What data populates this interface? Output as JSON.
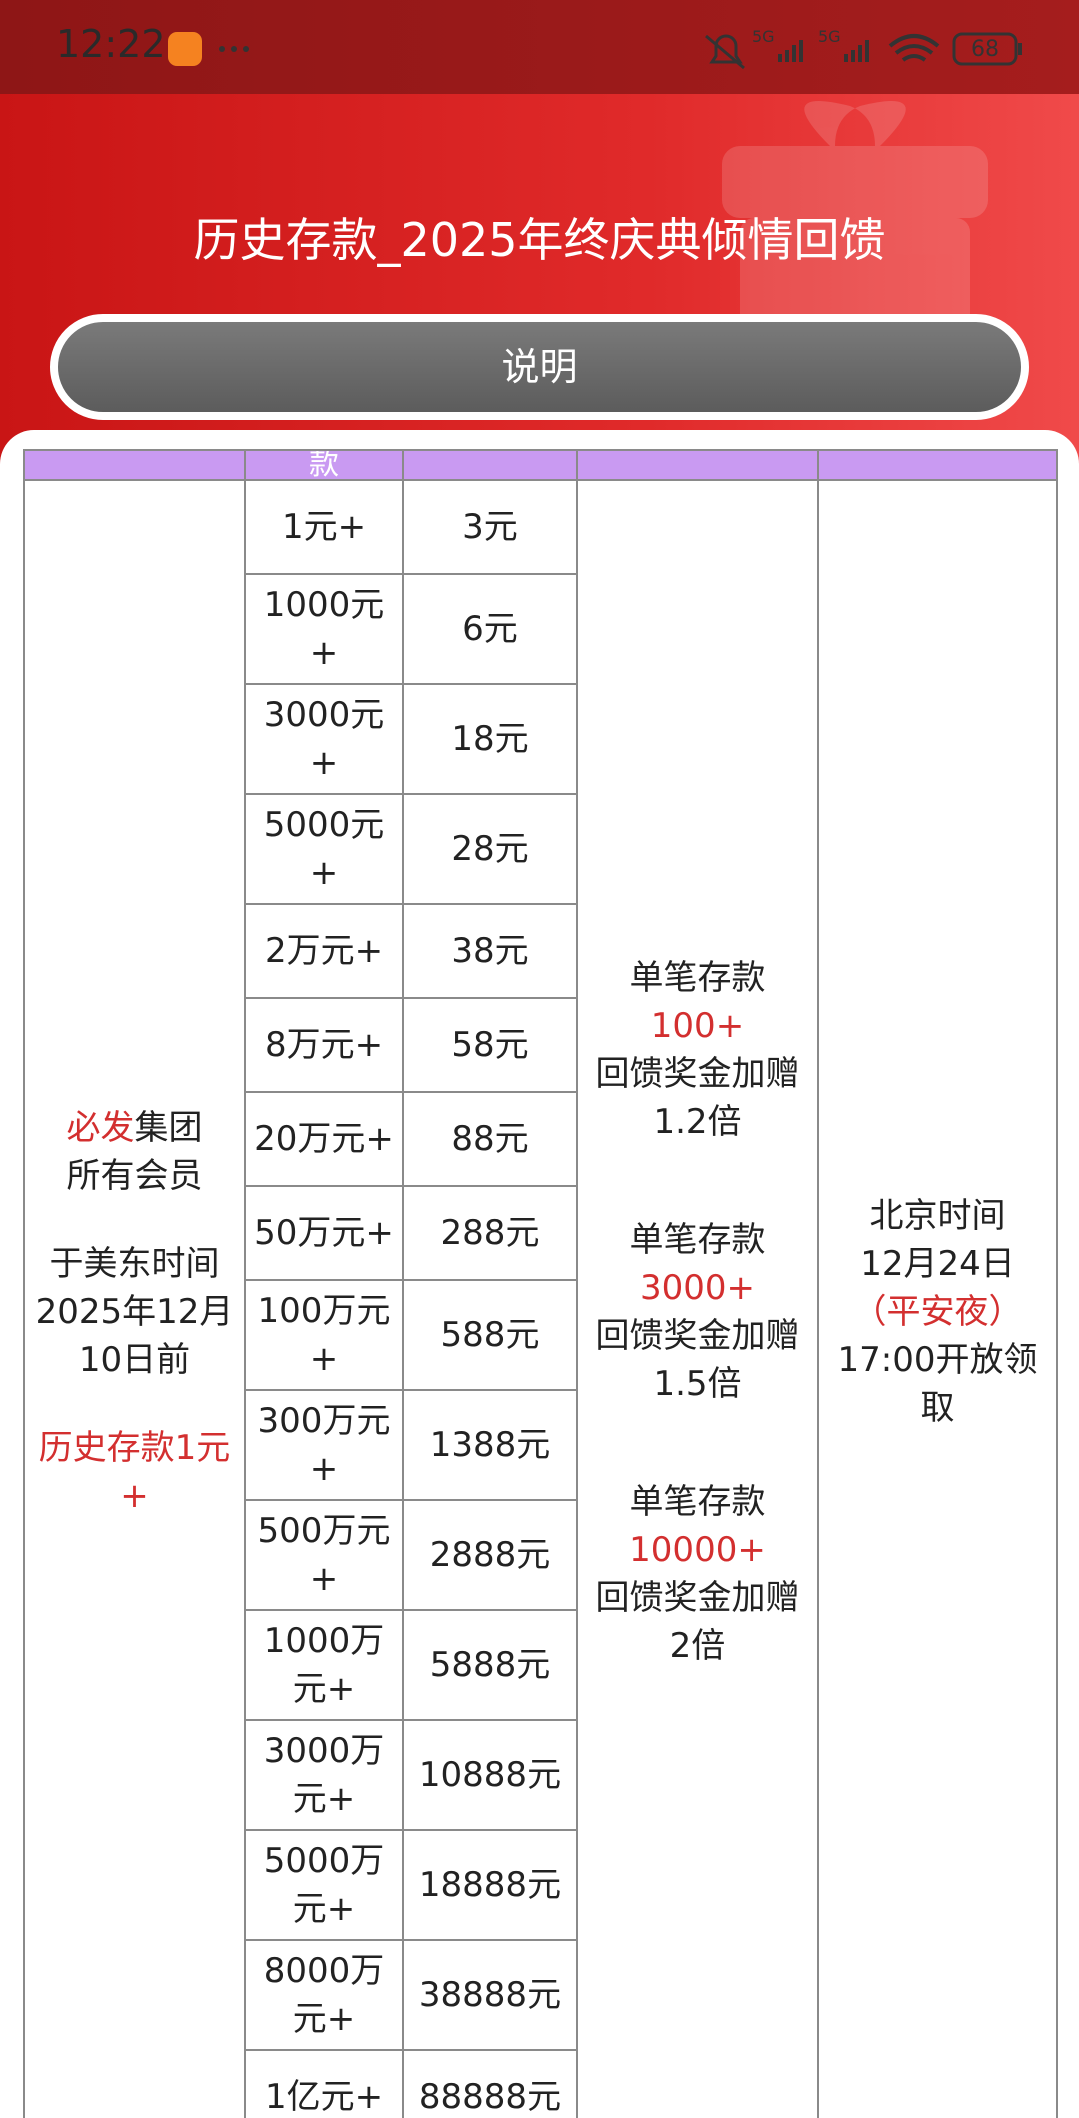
{
  "status": {
    "time": "12:22",
    "network": [
      "5G",
      "5G"
    ],
    "battery": "68"
  },
  "header": {
    "title": "历史存款_2025年终庆典倾情回馈",
    "button": "说明"
  },
  "table": {
    "header_fragment": "款",
    "eligibility": [
      [
        [
          {
            "text": "必发",
            "color": "#d32f2f"
          },
          {
            "text": "集团"
          }
        ],
        [
          {
            "text": "所有会员"
          }
        ]
      ],
      [
        [
          {
            "text": "于美东时间"
          }
        ],
        [
          {
            "text": "2025年12月"
          }
        ],
        [
          {
            "text": "10日前"
          }
        ]
      ],
      [
        [
          {
            "text": "历史存款1元+",
            "color": "#d32f2f"
          }
        ]
      ]
    ],
    "tiers": [
      {
        "deposit": "1元+",
        "reward": "3元"
      },
      {
        "deposit": "1000元+",
        "reward": "6元"
      },
      {
        "deposit": "3000元+",
        "reward": "18元"
      },
      {
        "deposit": "5000元+",
        "reward": "28元"
      },
      {
        "deposit": "2万元+",
        "reward": "38元"
      },
      {
        "deposit": "8万元+",
        "reward": "58元"
      },
      {
        "deposit": "20万元+",
        "reward": "88元"
      },
      {
        "deposit": "50万元+",
        "reward": "288元"
      },
      {
        "deposit": "100万元+",
        "reward": "588元"
      },
      {
        "deposit": "300万元+",
        "reward": "1388元"
      },
      {
        "deposit": "500万元+",
        "reward": "2888元"
      },
      {
        "deposit": "1000万元+",
        "reward": "5888元"
      },
      {
        "deposit": "3000万元+",
        "reward": "10888元"
      },
      {
        "deposit": "5000万元+",
        "reward": "18888元"
      },
      {
        "deposit": "8000万元+",
        "reward": "38888元"
      },
      {
        "deposit": "1亿元+",
        "reward": "88888元"
      }
    ],
    "bonus": [
      {
        "label": "单笔存款",
        "amount": "100+",
        "text": "回馈奖金加赠",
        "multiplier": "1.2倍"
      },
      {
        "label": "单笔存款",
        "amount": "3000+",
        "text": "回馈奖金加赠",
        "multiplier": "1.5倍"
      },
      {
        "label": "单笔存款",
        "amount": "10000+",
        "text": "回馈奖金加赠",
        "multiplier": "2倍"
      }
    ],
    "claim": [
      {
        "text": "北京时间"
      },
      {
        "text": "12月24日"
      },
      {
        "text": "（平安夜）",
        "color": "#d32f2f"
      },
      {
        "text": "17:00开放领取"
      }
    ]
  }
}
